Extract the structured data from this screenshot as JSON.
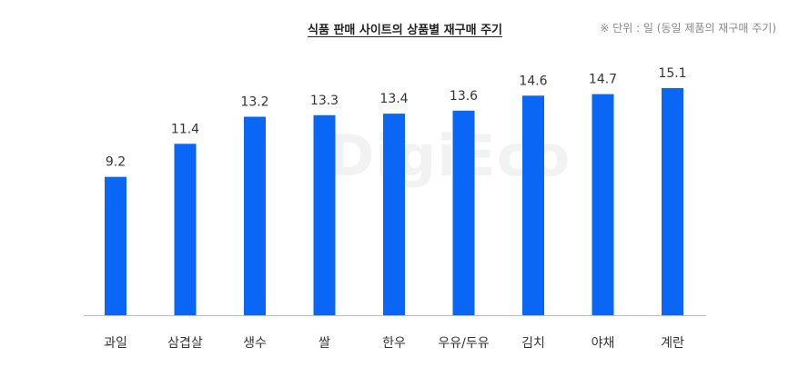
{
  "title": "식품 판매 사이트의 상품별 재구매 주기",
  "unit_note": "※ 단위 : 일 (동일 제품의 재구매 주기)",
  "watermark": "DigiEco",
  "colors": {
    "bar": "#0a66f5",
    "axis": "#bdbdbd",
    "text": "#333333"
  },
  "chart_data": {
    "type": "bar",
    "title": "식품 판매 사이트의 상품별 재구매 주기",
    "xlabel": "",
    "ylabel": "",
    "categories": [
      "과일",
      "삼겹살",
      "생수",
      "쌀",
      "한우",
      "우유/두유",
      "김치",
      "야채",
      "계란"
    ],
    "values": [
      9.2,
      11.4,
      13.2,
      13.3,
      13.4,
      13.6,
      14.6,
      14.7,
      15.1
    ],
    "ylim": [
      0,
      15.1
    ],
    "grid": false,
    "legend": "none"
  }
}
